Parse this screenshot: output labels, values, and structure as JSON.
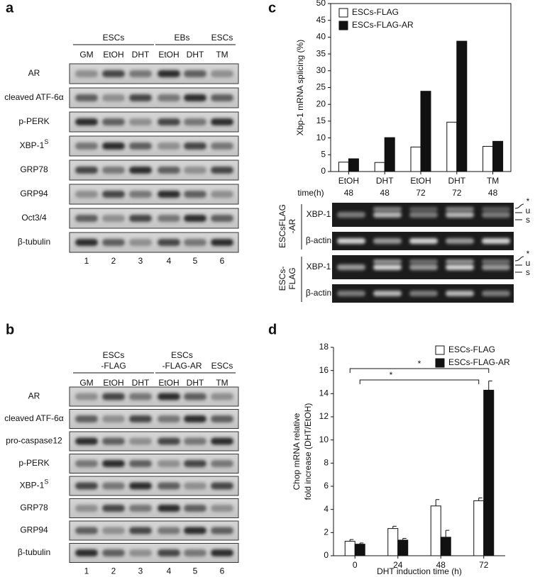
{
  "figure": {
    "panel_a": {
      "letter": "a",
      "groups": [
        {
          "lines": [
            "ESCs"
          ]
        },
        {
          "lines": [
            "EBs"
          ]
        },
        {
          "lines": [
            "ESCs"
          ]
        }
      ],
      "lanes": [
        "GM",
        "EtOH",
        "DHT",
        "EtOH",
        "DHT",
        "TM"
      ],
      "rows": [
        {
          "label": "AR"
        },
        {
          "label": "cleaved ATF-6α"
        },
        {
          "label": "p-PERK"
        },
        {
          "label": "XBP-1",
          "sup": "S"
        },
        {
          "label": "GRP78"
        },
        {
          "label": "GRP94"
        },
        {
          "label": "Oct3/4"
        },
        {
          "label": "β-tubulin"
        }
      ],
      "lane_numbers": [
        1,
        2,
        3,
        4,
        5,
        6
      ]
    },
    "panel_b": {
      "letter": "b",
      "groups": [
        {
          "lines": [
            "ESCs",
            "-FLAG"
          ]
        },
        {
          "lines": [
            "ESCs",
            "-FLAG-AR"
          ]
        },
        {
          "lines": [
            "ESCs"
          ]
        }
      ],
      "lanes": [
        "GM",
        "EtOH",
        "DHT",
        "EtOH",
        "DHT",
        "TM"
      ],
      "rows": [
        {
          "label": "AR"
        },
        {
          "label": "cleaved ATF-6α"
        },
        {
          "label": "pro-caspase12"
        },
        {
          "label": "p-PERK"
        },
        {
          "label": "XBP-1",
          "sup": "S"
        },
        {
          "label": "GRP78"
        },
        {
          "label": "GRP94"
        },
        {
          "label": "β-tubulin"
        }
      ],
      "lane_numbers": [
        1,
        2,
        3,
        4,
        5,
        6
      ]
    },
    "panel_c_gel": {
      "groups": [
        {
          "lines": [
            "ESCsFLAG",
            "-AR"
          ],
          "rows": [
            "XBP-1",
            "β-actin"
          ],
          "markers": [
            "*",
            "u",
            "s"
          ]
        },
        {
          "lines": [
            "ESCs-",
            "FLAG"
          ],
          "rows": [
            "XBP-1",
            "β-actin"
          ],
          "markers": [
            "*",
            "u",
            "s"
          ]
        }
      ]
    }
  },
  "chart_data": [
    {
      "type": "bar",
      "panel_label": "c",
      "y_label": "Xbp-1 mRNA splicing (%)",
      "categories": [
        "EtOH",
        "DHT",
        "EtOH",
        "DHT",
        "TM"
      ],
      "x_sublabel_title": "time(h)",
      "x_sublabels": [
        "48",
        "48",
        "72",
        "72",
        "48"
      ],
      "series": [
        {
          "name": "ESCs-FLAG",
          "color": "#ffffff",
          "values": [
            2.8,
            2.7,
            7.3,
            14.7,
            7.5
          ]
        },
        {
          "name": "ESCs-FLAG-AR",
          "color": "#111111",
          "values": [
            3.8,
            10.1,
            23.9,
            38.8,
            9
          ]
        }
      ],
      "ylim": [
        0,
        50
      ],
      "yticks": [
        0,
        5,
        10,
        15,
        20,
        25,
        30,
        35,
        40,
        45,
        50
      ],
      "legend": "upper-left",
      "frame": true
    },
    {
      "type": "bar",
      "panel_label": "d",
      "y_label": [
        "Chop mRNA relative",
        "fold increase (DHT/EtOH)"
      ],
      "x_label": "DHT induction time (h)",
      "categories": [
        "0",
        "24",
        "48",
        "72"
      ],
      "series": [
        {
          "name": "ESCs-FLAG",
          "color": "#ffffff",
          "values": [
            1.25,
            2.35,
            4.3,
            4.75
          ],
          "errors": [
            0.15,
            0.2,
            0.55,
            0.25
          ]
        },
        {
          "name": "ESCs-FLAG-AR",
          "color": "#111111",
          "values": [
            1.0,
            1.35,
            1.6,
            14.3
          ],
          "errors": [
            0.1,
            0.15,
            0.6,
            0.8
          ]
        }
      ],
      "annotations": [
        "*",
        "*"
      ],
      "ylim": [
        0,
        18
      ],
      "yticks": [
        0,
        2,
        4,
        6,
        8,
        10,
        12,
        14,
        16,
        18
      ],
      "legend": "upper-right",
      "frame": false
    }
  ]
}
